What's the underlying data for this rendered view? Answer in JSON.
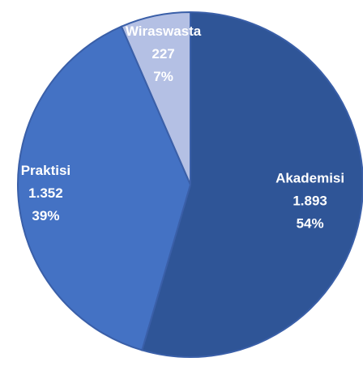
{
  "chart_data": {
    "type": "pie",
    "categories": [
      "Akademisi",
      "Praktisi",
      "Wiraswasta"
    ],
    "values": [
      1893,
      1352,
      227
    ],
    "value_labels": [
      "1.893",
      "1.352",
      "227"
    ],
    "percentages": [
      54,
      39,
      7
    ],
    "percentage_labels": [
      "54%",
      "39%",
      "7%"
    ],
    "colors": [
      "#2f5597",
      "#4472c4",
      "#b4c0e4"
    ]
  }
}
